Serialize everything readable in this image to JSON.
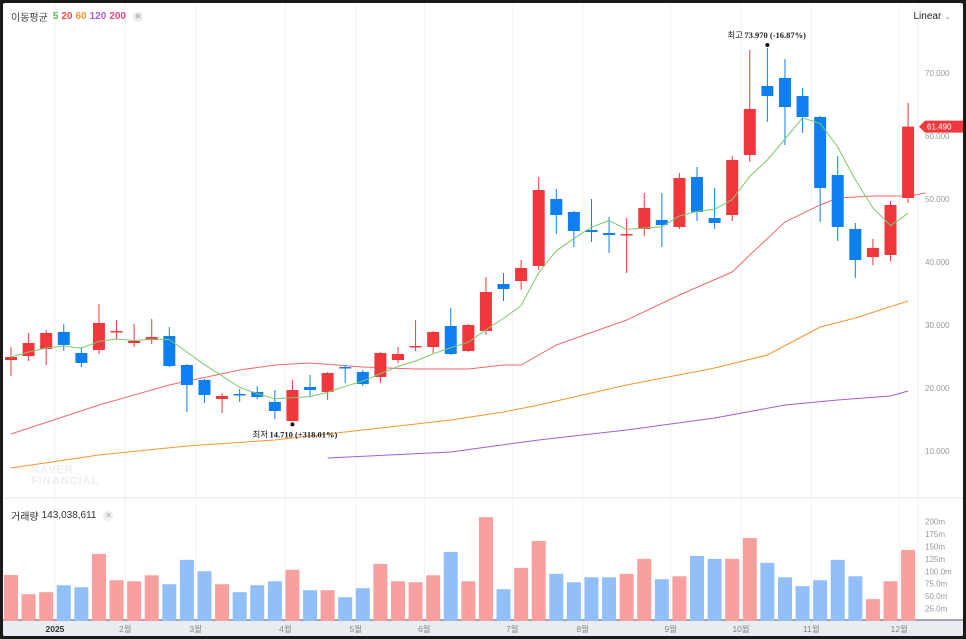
{
  "legend": {
    "label": "이동평균",
    "periods": [
      {
        "p": "5",
        "color": "#5cb85c"
      },
      {
        "p": "20",
        "color": "#f0484a"
      },
      {
        "p": "60",
        "color": "#f7962d"
      },
      {
        "p": "120",
        "color": "#a55fd1"
      },
      {
        "p": "200",
        "color": "#e8457a"
      }
    ],
    "close_icon": "close-icon"
  },
  "scale_button": "Linear",
  "volume_legend": {
    "label": "거래량",
    "value": "143,038,611"
  },
  "watermark": [
    "NAVER",
    "FINANCIAL"
  ],
  "colors": {
    "up": "#f0383c",
    "down": "#0d7ff0",
    "up_vol": "#f8a0a0",
    "down_vol": "#92bff8"
  },
  "chart_data": {
    "type": "candlestick",
    "ylim": [
      0,
      80000
    ],
    "yticks": [
      10000,
      20000,
      30000,
      40000,
      50000,
      60000,
      70000
    ],
    "ytick_labels": [
      "10.000",
      "20.000",
      "30.000",
      "40.000",
      "50.000",
      "60.000",
      "70.000"
    ],
    "current_price": {
      "value": 61490,
      "label": "61.490"
    },
    "xticks": [
      {
        "i": 2.5,
        "label": "2025"
      },
      {
        "i": 6.5,
        "label": "2월"
      },
      {
        "i": 10.5,
        "label": "3월"
      },
      {
        "i": 15.6,
        "label": "4월"
      },
      {
        "i": 19.6,
        "label": "5월"
      },
      {
        "i": 23.5,
        "label": "6월"
      },
      {
        "i": 28.5,
        "label": "7월"
      },
      {
        "i": 32.5,
        "label": "8월"
      },
      {
        "i": 37.5,
        "label": "9월"
      },
      {
        "i": 41.5,
        "label": "10월"
      },
      {
        "i": 45.5,
        "label": "11월"
      },
      {
        "i": 50.5,
        "label": "12월"
      }
    ],
    "annotations": [
      {
        "i": 43,
        "price": 73970,
        "type": "high",
        "label": "최고",
        "text": "73.970 (-16.87%)"
      },
      {
        "i": 16,
        "price": 14710,
        "type": "low",
        "label": "최저",
        "text": "14.710 (+318.01%)"
      }
    ],
    "ohlc": [
      [
        24440,
        26510,
        21900,
        24920
      ],
      [
        25080,
        28730,
        24290,
        27140
      ],
      [
        26190,
        29210,
        23650,
        28730
      ],
      [
        28890,
        30160,
        25870,
        26830
      ],
      [
        25560,
        26510,
        23330,
        23970
      ],
      [
        26030,
        33330,
        25400,
        30320
      ],
      [
        28890,
        30790,
        27620,
        29050
      ],
      [
        27140,
        30160,
        26510,
        27460
      ],
      [
        27620,
        30950,
        26980,
        28100
      ],
      [
        28250,
        29680,
        23330,
        23490
      ],
      [
        23650,
        23810,
        16190,
        20480
      ],
      [
        21270,
        21430,
        17620,
        18890
      ],
      [
        18250,
        19210,
        16030,
        18730
      ],
      [
        19050,
        19840,
        17780,
        18890
      ],
      [
        19370,
        20320,
        18250,
        18570
      ],
      [
        17780,
        19680,
        15080,
        16350
      ],
      [
        14760,
        21270,
        14710,
        19680
      ],
      [
        20160,
        22060,
        18570,
        19680
      ],
      [
        19370,
        22540,
        18100,
        22380
      ],
      [
        23330,
        23650,
        20790,
        23170
      ],
      [
        22540,
        22860,
        20320,
        20630
      ],
      [
        21750,
        25710,
        20790,
        25560
      ],
      [
        24440,
        26510,
        23970,
        25400
      ],
      [
        26510,
        30790,
        25870,
        26670
      ],
      [
        26510,
        29050,
        25560,
        28890
      ],
      [
        29840,
        32700,
        25240,
        25400
      ],
      [
        25870,
        30160,
        25710,
        30000
      ],
      [
        29050,
        37620,
        28410,
        35240
      ],
      [
        36510,
        38250,
        33810,
        35710
      ],
      [
        36980,
        40320,
        35560,
        39050
      ],
      [
        39370,
        53490,
        38730,
        51430
      ],
      [
        50000,
        51590,
        44440,
        47460
      ],
      [
        47940,
        48100,
        42380,
        44920
      ],
      [
        45080,
        50000,
        43170,
        44760
      ],
      [
        44600,
        47140,
        41430,
        44290
      ],
      [
        44290,
        46980,
        38250,
        44440
      ],
      [
        45240,
        50950,
        44130,
        48570
      ],
      [
        46670,
        50950,
        42380,
        45870
      ],
      [
        45560,
        54130,
        45240,
        53330
      ],
      [
        53490,
        55080,
        46510,
        47940
      ],
      [
        46980,
        51750,
        45240,
        46190
      ],
      [
        47460,
        56830,
        46510,
        56190
      ],
      [
        56980,
        73650,
        55870,
        64290
      ],
      [
        67940,
        73970,
        62220,
        66350
      ],
      [
        69210,
        72220,
        58570,
        64600
      ],
      [
        66350,
        67620,
        60480,
        63020
      ],
      [
        63020,
        63170,
        46350,
        51750
      ],
      [
        53810,
        56830,
        43330,
        45560
      ],
      [
        45240,
        46190,
        37460,
        40320
      ],
      [
        40790,
        43650,
        39520,
        42220
      ],
      [
        41110,
        49680,
        40160,
        49050
      ],
      [
        50160,
        65240,
        49370,
        61490
      ]
    ],
    "volume_m": [
      92.5,
      54,
      58,
      72,
      68,
      135,
      82,
      80,
      92,
      74,
      123,
      100,
      74,
      58,
      72,
      80,
      103,
      62,
      62,
      48,
      66,
      115,
      80,
      78,
      92,
      139,
      80,
      209,
      64,
      107,
      161,
      95,
      78,
      88,
      88,
      95,
      125,
      84,
      90,
      131,
      125,
      125,
      167,
      117,
      88,
      70,
      82,
      123,
      90,
      44,
      80,
      143.04
    ],
    "volume_ylim": [
      0,
      225
    ],
    "volume_ticks": [
      25,
      50,
      75,
      100,
      125,
      150,
      175,
      200
    ],
    "volume_tick_labels": [
      "25.0m",
      "50.0m",
      "75.0m",
      "100.0m",
      "125m",
      "150m",
      "175m",
      "200m"
    ],
    "ma5_first": [
      24920,
      25710,
      26350,
      26670
    ],
    "ma20": [
      [
        0,
        12700
      ],
      [
        5,
        17300
      ],
      [
        9,
        20480
      ],
      [
        13,
        22860
      ],
      [
        15,
        23650
      ],
      [
        17,
        23970
      ],
      [
        20,
        23330
      ],
      [
        23,
        23020
      ],
      [
        26,
        23020
      ],
      [
        28,
        23650
      ],
      [
        29,
        23650
      ],
      [
        31,
        26830
      ],
      [
        35,
        30790
      ],
      [
        38,
        34760
      ],
      [
        41,
        38410
      ],
      [
        42,
        41110
      ],
      [
        44,
        46350
      ],
      [
        46,
        49050
      ],
      [
        47,
        50160
      ],
      [
        49,
        50480
      ],
      [
        51,
        50480
      ],
      [
        52,
        50950
      ]
    ],
    "ma60": [
      [
        0,
        7300
      ],
      [
        5,
        9370
      ],
      [
        10,
        10790
      ],
      [
        15,
        11750
      ],
      [
        20,
        13330
      ],
      [
        25,
        14920
      ],
      [
        28,
        16190
      ],
      [
        30,
        17300
      ],
      [
        35,
        20480
      ],
      [
        40,
        23170
      ],
      [
        43,
        25240
      ],
      [
        46,
        29680
      ],
      [
        48,
        31110
      ],
      [
        51,
        33810
      ]
    ],
    "ma120": [
      [
        18,
        8890
      ],
      [
        25,
        9840
      ],
      [
        30,
        11750
      ],
      [
        35,
        13330
      ],
      [
        40,
        15240
      ],
      [
        44,
        17300
      ],
      [
        47,
        18100
      ],
      [
        50,
        18730
      ],
      [
        51,
        19520
      ]
    ]
  }
}
